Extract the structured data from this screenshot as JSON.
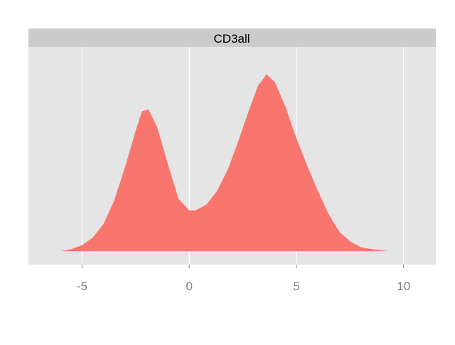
{
  "chart_data": {
    "type": "area",
    "facet_label": "CD3all",
    "title": "",
    "xlabel": "",
    "ylabel": "",
    "xlim": [
      -7.5,
      11.5
    ],
    "ylim": [
      0,
      1
    ],
    "x_ticks": [
      -5,
      0,
      5,
      10
    ],
    "x_tick_labels": [
      "-5",
      "0",
      "5",
      "10"
    ],
    "grid": true,
    "y_axis_visible": false,
    "series": [
      {
        "fill": "#f8766d",
        "points": [
          [
            -6.0,
            0.0
          ],
          [
            -5.5,
            0.01
          ],
          [
            -5.0,
            0.03
          ],
          [
            -4.5,
            0.07
          ],
          [
            -4.0,
            0.14
          ],
          [
            -3.5,
            0.26
          ],
          [
            -3.0,
            0.43
          ],
          [
            -2.5,
            0.62
          ],
          [
            -2.2,
            0.72
          ],
          [
            -1.9,
            0.73
          ],
          [
            -1.5,
            0.64
          ],
          [
            -1.0,
            0.45
          ],
          [
            -0.5,
            0.27
          ],
          [
            0.0,
            0.21
          ],
          [
            0.3,
            0.21
          ],
          [
            0.8,
            0.24
          ],
          [
            1.3,
            0.31
          ],
          [
            1.8,
            0.42
          ],
          [
            2.3,
            0.57
          ],
          [
            2.8,
            0.73
          ],
          [
            3.2,
            0.85
          ],
          [
            3.6,
            0.91
          ],
          [
            4.0,
            0.87
          ],
          [
            4.5,
            0.74
          ],
          [
            5.0,
            0.58
          ],
          [
            5.5,
            0.44
          ],
          [
            6.0,
            0.31
          ],
          [
            6.5,
            0.19
          ],
          [
            7.0,
            0.1
          ],
          [
            7.5,
            0.05
          ],
          [
            8.0,
            0.02
          ],
          [
            8.5,
            0.01
          ],
          [
            9.3,
            0.0
          ]
        ]
      }
    ]
  },
  "colors": {
    "panel_bg": "#e5e5e5",
    "strip_bg": "#cccccc",
    "grid": "#ffffff",
    "tick_text": "#7f7f7f",
    "tick_mark": "#7f7f7f",
    "strip_text": "#000000"
  }
}
